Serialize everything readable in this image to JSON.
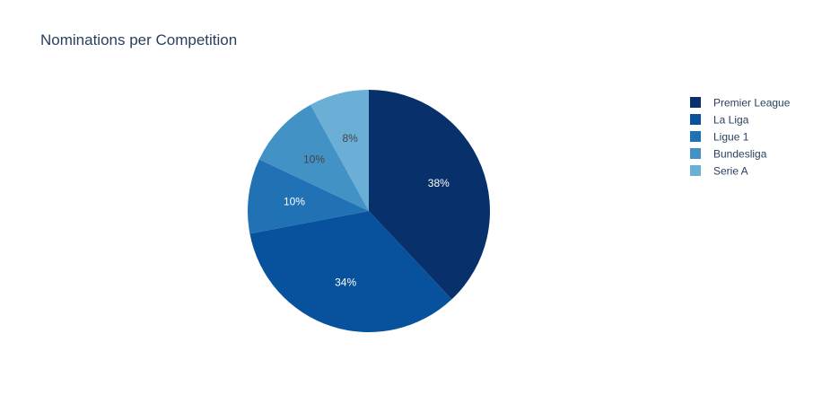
{
  "chart_data": {
    "type": "pie",
    "title": "Nominations per Competition",
    "categories": [
      "Premier League",
      "La Liga",
      "Ligue 1",
      "Bundesliga",
      "Serie A"
    ],
    "values": [
      38,
      34,
      10,
      10,
      8
    ],
    "labels": [
      "38%",
      "34%",
      "10%",
      "10%",
      "8%"
    ],
    "colors": [
      "#08306b",
      "#08519c",
      "#2171b5",
      "#4292c6",
      "#6baed6"
    ],
    "label_colors": [
      "#ffffff",
      "#ffffff",
      "#ffffff",
      "#444444",
      "#444444"
    ],
    "legend_position": "top-right",
    "direction": "clockwise",
    "start": "top"
  }
}
